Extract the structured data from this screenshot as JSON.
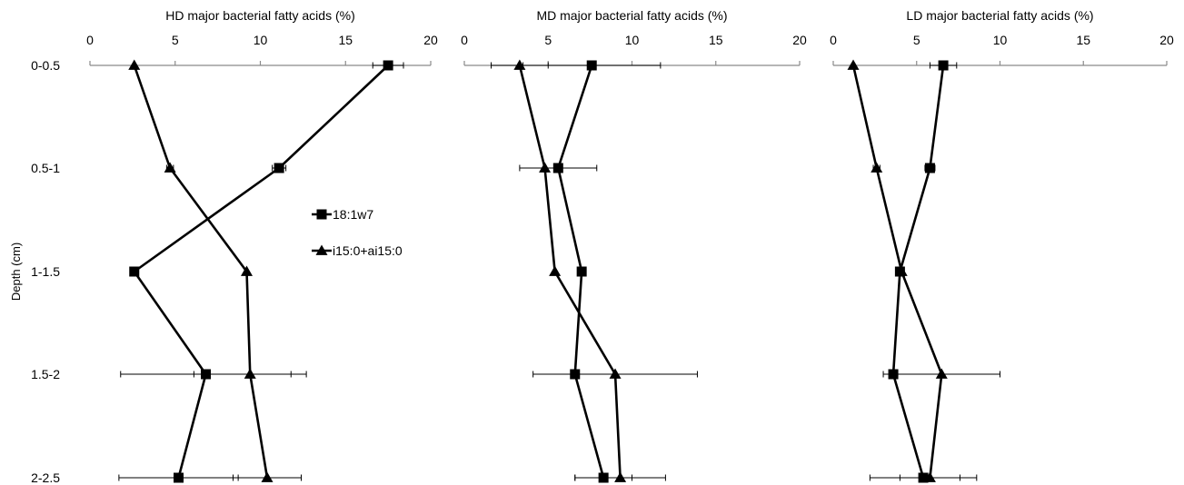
{
  "chart_data": {
    "type": "line",
    "ylabel": "Depth (cm)",
    "y_categories": [
      "0-0.5",
      "0.5-1",
      "1-1.5",
      "1.5-2",
      "2-2.5"
    ],
    "xlim": [
      0,
      20
    ],
    "x_ticks": [
      "0",
      "5",
      "10",
      "15",
      "20"
    ],
    "y_inverted": true,
    "legend": {
      "position": "inside HD panel, middle-right",
      "entries": [
        {
          "label": "18:1w7",
          "marker": "square"
        },
        {
          "label": "i15:0+ai15:0",
          "marker": "triangle"
        }
      ]
    },
    "panels": [
      {
        "title": "HD major bacterial fatty acids (%)",
        "series": [
          {
            "name": "18:1w7",
            "marker": "square",
            "values": [
              17.5,
              11.1,
              2.6,
              6.8,
              5.2
            ],
            "errors": [
              0.9,
              0.4,
              0,
              5.0,
              3.5
            ]
          },
          {
            "name": "i15:0+ai15:0",
            "marker": "triangle",
            "values": [
              2.6,
              4.7,
              9.2,
              9.4,
              10.4
            ],
            "errors": [
              0,
              0.2,
              0,
              3.3,
              2.0
            ]
          }
        ]
      },
      {
        "title": "MD major bacterial fatty acids (%)",
        "series": [
          {
            "name": "18:1w7",
            "marker": "square",
            "values": [
              7.6,
              5.6,
              7.0,
              6.6,
              8.3
            ],
            "errors": [
              4.1,
              2.3,
              0,
              0,
              1.7
            ]
          },
          {
            "name": "i15:0+ai15:0",
            "marker": "triangle",
            "values": [
              3.3,
              4.8,
              5.4,
              9.0,
              9.3
            ],
            "errors": [
              1.7,
              0,
              0,
              4.9,
              2.7
            ]
          }
        ]
      },
      {
        "title": "LD major bacterial fatty acids (%)",
        "series": [
          {
            "name": "18:1w7",
            "marker": "square",
            "values": [
              6.6,
              5.8,
              4.0,
              3.6,
              5.4
            ],
            "errors": [
              0.8,
              0.3,
              0,
              0,
              3.2
            ]
          },
          {
            "name": "i15:0+ai15:0",
            "marker": "triangle",
            "values": [
              1.2,
              2.6,
              4.1,
              6.5,
              5.8
            ],
            "errors": [
              0,
              0.2,
              0,
              3.5,
              1.8
            ]
          }
        ]
      }
    ]
  }
}
